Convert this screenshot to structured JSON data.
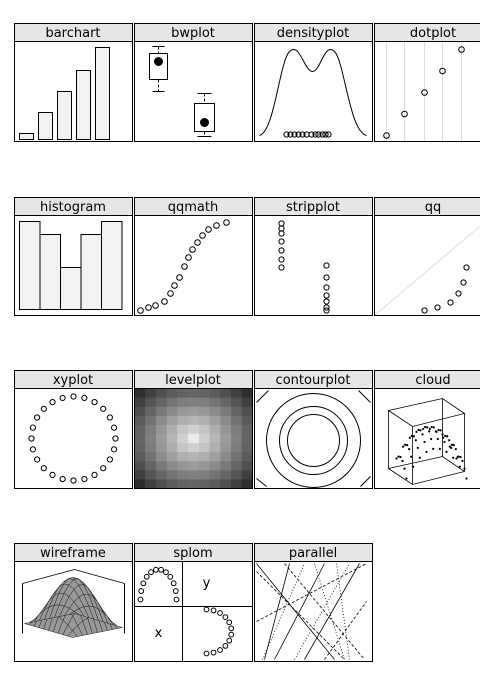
{
  "panels": [
    {
      "title": "barchart"
    },
    {
      "title": "bwplot"
    },
    {
      "title": "densityplot"
    },
    {
      "title": "dotplot"
    },
    {
      "title": "histogram"
    },
    {
      "title": "qqmath"
    },
    {
      "title": "stripplot"
    },
    {
      "title": "qq"
    },
    {
      "title": "xyplot"
    },
    {
      "title": "levelplot"
    },
    {
      "title": "contourplot"
    },
    {
      "title": "cloud"
    },
    {
      "title": "wireframe"
    },
    {
      "title": "splom",
      "labels": [
        "y",
        "x"
      ]
    },
    {
      "title": "parallel"
    }
  ]
}
